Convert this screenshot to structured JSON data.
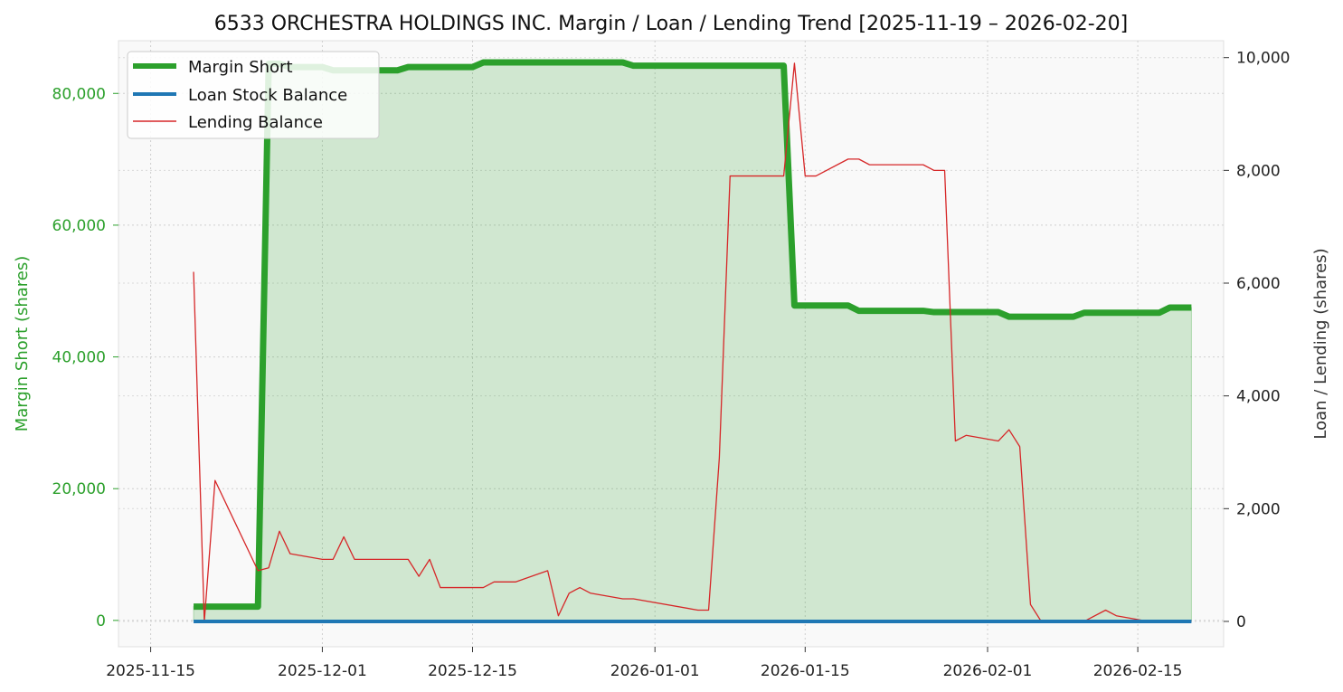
{
  "chart_data": {
    "type": "line",
    "title": "6533 ORCHESTRA HOLDINGS INC. Margin / Loan / Lending Trend [2025-11-19 – 2026-02-20]",
    "ylabel_left": "Margin Short (shares)",
    "ylabel_right": "Loan / Lending (shares)",
    "xlabel": "",
    "x_ticks": [
      "2025-11-15",
      "2025-12-01",
      "2025-12-15",
      "2026-01-01",
      "2026-01-15",
      "2026-02-01",
      "2026-02-15"
    ],
    "y_left_ticks": [
      "0",
      "20,000",
      "40,000",
      "60,000",
      "80,000"
    ],
    "y_right_ticks": [
      "0",
      "2,000",
      "4,000",
      "6,000",
      "8,000",
      "10,000"
    ],
    "ylim_left": [
      -4000,
      88000
    ],
    "ylim_right": [
      -450,
      10300
    ],
    "grid": true,
    "legend_position": "top-left",
    "colors": {
      "margin": "#2ca02c",
      "loan": "#1f77b4",
      "lending": "#d62728",
      "left_axis_text": "#2ca02c"
    },
    "series": [
      {
        "name": "Margin Short",
        "axis": "left",
        "x": [
          "2025-11-19",
          "2025-11-20",
          "2025-11-21",
          "2025-11-25",
          "2025-11-26",
          "2025-11-27",
          "2025-11-28",
          "2025-12-01",
          "2025-12-02",
          "2025-12-03",
          "2025-12-04",
          "2025-12-05",
          "2025-12-08",
          "2025-12-09",
          "2025-12-10",
          "2025-12-11",
          "2025-12-12",
          "2025-12-15",
          "2025-12-16",
          "2025-12-17",
          "2025-12-18",
          "2025-12-19",
          "2025-12-22",
          "2025-12-23",
          "2025-12-24",
          "2025-12-25",
          "2025-12-26",
          "2025-12-29",
          "2025-12-30",
          "2026-01-05",
          "2026-01-06",
          "2026-01-07",
          "2026-01-08",
          "2026-01-09",
          "2026-01-13",
          "2026-01-14",
          "2026-01-15",
          "2026-01-16",
          "2026-01-19",
          "2026-01-20",
          "2026-01-21",
          "2026-01-22",
          "2026-01-23",
          "2026-01-26",
          "2026-01-27",
          "2026-01-28",
          "2026-01-29",
          "2026-01-30",
          "2026-02-02",
          "2026-02-03",
          "2026-02-04",
          "2026-02-05",
          "2026-02-06",
          "2026-02-09",
          "2026-02-10",
          "2026-02-12",
          "2026-02-13",
          "2026-02-16",
          "2026-02-17",
          "2026-02-18",
          "2026-02-19",
          "2026-02-20"
        ],
        "values": [
          2100,
          2100,
          2100,
          2100,
          84500,
          84500,
          84000,
          84000,
          83500,
          83500,
          83500,
          83500,
          83500,
          84000,
          84000,
          84000,
          84000,
          84000,
          84700,
          84700,
          84700,
          84700,
          84700,
          84700,
          84700,
          84700,
          84700,
          84700,
          84200,
          84200,
          84200,
          84200,
          84200,
          84200,
          84200,
          47800,
          47800,
          47800,
          47800,
          47000,
          47000,
          47000,
          47000,
          47000,
          46800,
          46800,
          46800,
          46800,
          46800,
          46100,
          46100,
          46100,
          46100,
          46100,
          46700,
          46700,
          46700,
          46700,
          46700,
          47500,
          47500,
          47500
        ]
      },
      {
        "name": "Loan Stock Balance",
        "axis": "right",
        "x": [
          "2025-11-19",
          "2026-02-20"
        ],
        "values": [
          0,
          0
        ]
      },
      {
        "name": "Lending Balance",
        "axis": "right",
        "x": [
          "2025-11-19",
          "2025-11-20",
          "2025-11-21",
          "2025-11-25",
          "2025-11-26",
          "2025-11-27",
          "2025-11-28",
          "2025-12-01",
          "2025-12-02",
          "2025-12-03",
          "2025-12-04",
          "2025-12-05",
          "2025-12-08",
          "2025-12-09",
          "2025-12-10",
          "2025-12-11",
          "2025-12-12",
          "2025-12-15",
          "2025-12-16",
          "2025-12-17",
          "2025-12-18",
          "2025-12-19",
          "2025-12-22",
          "2025-12-23",
          "2025-12-24",
          "2025-12-25",
          "2025-12-26",
          "2025-12-29",
          "2025-12-30",
          "2026-01-05",
          "2026-01-06",
          "2026-01-07",
          "2026-01-08",
          "2026-01-09",
          "2026-01-13",
          "2026-01-14",
          "2026-01-15",
          "2026-01-16",
          "2026-01-19",
          "2026-01-20",
          "2026-01-21",
          "2026-01-22",
          "2026-01-23",
          "2026-01-26",
          "2026-01-27",
          "2026-01-28",
          "2026-01-29",
          "2026-01-30",
          "2026-02-02",
          "2026-02-03",
          "2026-02-04",
          "2026-02-05",
          "2026-02-06",
          "2026-02-09",
          "2026-02-10",
          "2026-02-12",
          "2026-02-13",
          "2026-02-16",
          "2026-02-17",
          "2026-02-18",
          "2026-02-19",
          "2026-02-20"
        ],
        "values": [
          6200,
          0,
          2500,
          900,
          950,
          1600,
          1200,
          1100,
          1100,
          1500,
          1100,
          1100,
          1100,
          1100,
          800,
          1100,
          600,
          600,
          600,
          700,
          700,
          700,
          900,
          100,
          500,
          600,
          500,
          400,
          400,
          200,
          200,
          2900,
          7900,
          7900,
          7900,
          9900,
          7900,
          7900,
          8200,
          8200,
          8100,
          8100,
          8100,
          8100,
          8000,
          8000,
          3200,
          3300,
          3200,
          3400,
          3100,
          300,
          0,
          0,
          0,
          200,
          100,
          0,
          0,
          0,
          0,
          0
        ]
      }
    ]
  }
}
